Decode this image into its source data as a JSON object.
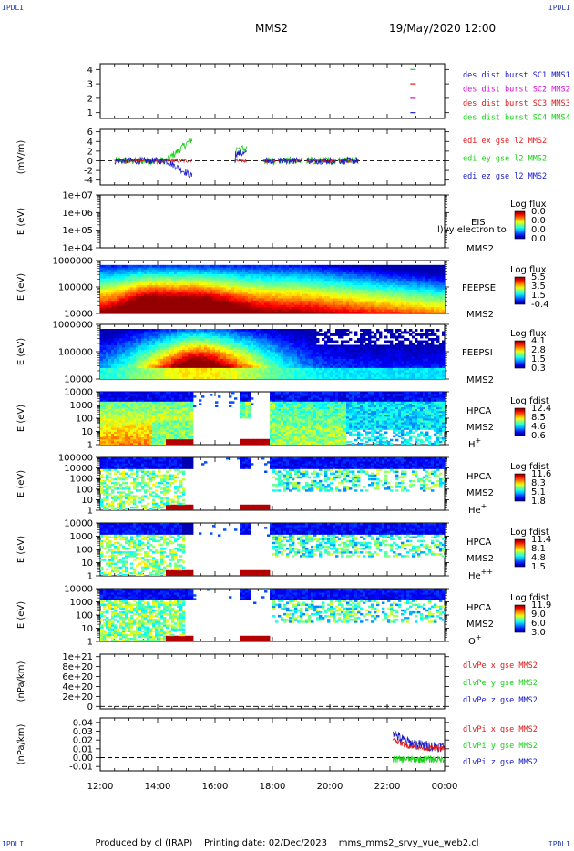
{
  "header": {
    "corner_left_top": "IPDLI",
    "corner_right_top": "IPDLI",
    "corner_left_bottom": "IPDLI",
    "corner_right_bottom": "IPDLI",
    "spacecraft": "MMS2",
    "datetime": "19/May/2020 12:00"
  },
  "footer": {
    "produced": "Produced by cl (IRAP)",
    "printing": "Printing date: 02/Dec/2023",
    "file": "mms_mms2_srvy_vue_web2.cl"
  },
  "colors": {
    "blue": "#1818c8",
    "magenta": "#d010d0",
    "red": "#e01818",
    "green": "#18d018"
  },
  "chart_data": {
    "type": "stacked-panels",
    "xaxis": {
      "ticks": [
        "12:00",
        "14:00",
        "16:00",
        "18:00",
        "20:00",
        "22:00",
        "00:00"
      ],
      "range_hours": [
        12,
        24
      ]
    },
    "panels": [
      {
        "id": "burst",
        "type": "ticks",
        "ylabel": "",
        "yticks": [
          "1",
          "2",
          "3",
          "4"
        ],
        "ylim": [
          0.6,
          4.4
        ],
        "legend": [
          {
            "label": "des dist burst SC1 MMS1",
            "color": "#1818c8",
            "y": 1
          },
          {
            "label": "des dist burst SC2 MMS2",
            "color": "#d010d0",
            "y": 2
          },
          {
            "label": "des dist burst SC3 MMS3",
            "color": "#e01818",
            "y": 3
          },
          {
            "label": "des dist burst SC4 MMS4",
            "color": "#18d018",
            "y": 4
          }
        ],
        "marks": [
          {
            "x": 22.9,
            "y": 1,
            "color": "#1818c8"
          },
          {
            "x": 22.9,
            "y": 2,
            "color": "#d010d0"
          },
          {
            "x": 22.9,
            "y": 3,
            "color": "#e01818"
          },
          {
            "x": 22.9,
            "y": 4,
            "color": "#18d018"
          }
        ]
      },
      {
        "id": "edi",
        "type": "line",
        "ylabel": "(mV/m)",
        "yticks": [
          "-4",
          "-2",
          "0",
          "2",
          "4",
          "6"
        ],
        "ylim": [
          -5,
          6.5
        ],
        "zero_line": true,
        "legend": [
          {
            "label": "edi ex gse l2 MMS2",
            "color": "#e01818"
          },
          {
            "label": "edi ey gse l2 MMS2",
            "color": "#18d018"
          },
          {
            "label": "edi ez gse l2 MMS2",
            "color": "#1818c8"
          }
        ]
      },
      {
        "id": "eis",
        "type": "spectrogram",
        "ylabel": "E (eV)",
        "yticks": [
          "1e+04",
          "1e+05",
          "1e+06",
          "1e+07"
        ],
        "right_labels": [
          "EIS",
          "MMS2"
        ],
        "overlay_text": "l)vy electron to",
        "colorbar": {
          "title": "Log flux",
          "values": [
            "0.0",
            "0.0",
            "0.0",
            "0.0"
          ]
        }
      },
      {
        "id": "feepse",
        "type": "spectrogram",
        "ylabel": "E (eV)",
        "yticks": [
          "10000",
          "100000",
          "1000000"
        ],
        "right_labels": [
          "FEEPSE",
          "MMS2"
        ],
        "colorbar": {
          "title": "Log flux",
          "values": [
            "5.5",
            "3.5",
            "1.5",
            "-0.4"
          ]
        }
      },
      {
        "id": "feepsi",
        "type": "spectrogram",
        "ylabel": "E (eV)",
        "yticks": [
          "10000",
          "100000",
          "1000000"
        ],
        "right_labels": [
          "FEEPSI",
          "MMS2"
        ],
        "colorbar": {
          "title": "Log flux",
          "values": [
            "4.1",
            "2.8",
            "1.5",
            "0.3"
          ]
        }
      },
      {
        "id": "hpca_h",
        "type": "spectrogram",
        "ylabel": "E (eV)",
        "yticks": [
          "1",
          "10",
          "100",
          "1000",
          "10000"
        ],
        "right_labels": [
          "HPCA",
          "MMS2",
          "H+"
        ],
        "colorbar": {
          "title": "Log fdist",
          "values": [
            "12.4",
            "8.5",
            "4.6",
            "0.6"
          ]
        }
      },
      {
        "id": "hpca_he",
        "type": "spectrogram",
        "ylabel": "E (eV)",
        "yticks": [
          "1",
          "10",
          "100",
          "1000",
          "10000",
          "100000"
        ],
        "right_labels": [
          "HPCA",
          "MMS2",
          "He+"
        ],
        "colorbar": {
          "title": "Log fdist",
          "values": [
            "11.6",
            "8.3",
            "5.1",
            "1.8"
          ]
        }
      },
      {
        "id": "hpca_hepp",
        "type": "spectrogram",
        "ylabel": "E (eV)",
        "yticks": [
          "1",
          "10",
          "100",
          "1000",
          "10000"
        ],
        "right_labels": [
          "HPCA",
          "MMS2",
          "He++"
        ],
        "colorbar": {
          "title": "Log fdist",
          "values": [
            "11.4",
            "8.1",
            "4.8",
            "1.5"
          ]
        }
      },
      {
        "id": "hpca_o",
        "type": "spectrogram",
        "ylabel": "E (eV)",
        "yticks": [
          "1",
          "10",
          "100",
          "1000",
          "10000"
        ],
        "right_labels": [
          "HPCA",
          "MMS2",
          "O+"
        ],
        "colorbar": {
          "title": "Log fdist",
          "values": [
            "11.9",
            "9.0",
            "6.0",
            "3.0"
          ]
        }
      },
      {
        "id": "divpe",
        "type": "line",
        "ylabel": "(nPa/km)",
        "yticks": [
          "0",
          "2e+20",
          "4e+20",
          "6e+20",
          "8e+20",
          "1e+21"
        ],
        "ylim": [
          -5e+19,
          1.05e+21
        ],
        "zero_line": true,
        "legend": [
          {
            "label": "dlvPe x gse MMS2",
            "color": "#e01818"
          },
          {
            "label": "dlvPe y gse MMS2",
            "color": "#18d018"
          },
          {
            "label": "dlvPe z gse MMS2",
            "color": "#1818c8"
          }
        ]
      },
      {
        "id": "divpi",
        "type": "line",
        "ylabel": "(nPa/km)",
        "yticks": [
          "-0.01",
          "0.00",
          "0.01",
          "0.02",
          "0.03",
          "0.04"
        ],
        "ylim": [
          -0.015,
          0.045
        ],
        "zero_line": true,
        "legend": [
          {
            "label": "dlvPi x gse MMS2",
            "color": "#e01818"
          },
          {
            "label": "dlvPi y gse MMS2",
            "color": "#18d018"
          },
          {
            "label": "dlvPi z gse MMS2",
            "color": "#1818c8"
          }
        ]
      }
    ]
  }
}
